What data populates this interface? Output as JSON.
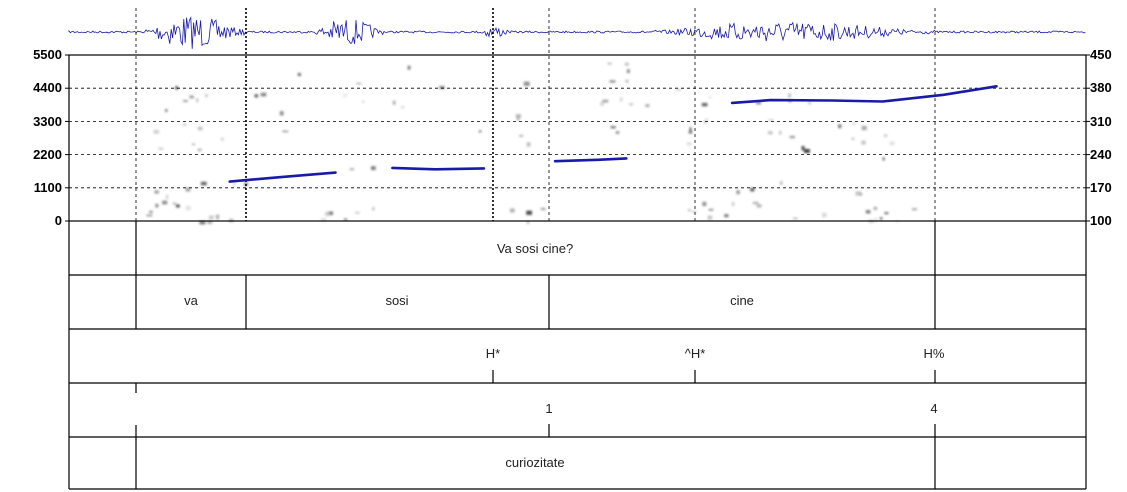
{
  "chart_data": {
    "type": "spectrogram",
    "colors": {
      "pitch": "#1a1aa8",
      "waveform": "#1a1aa8",
      "grid": "#000000",
      "tier_line": "#000000"
    },
    "left_axis": {
      "ylim": [
        0,
        5500
      ],
      "ticks": [
        "5500",
        "4400",
        "3300",
        "2200",
        "1100",
        "0"
      ]
    },
    "right_axis": {
      "ylim": [
        100,
        450
      ],
      "ticks": [
        "450",
        "380",
        "310",
        "240",
        "170",
        "100"
      ]
    },
    "pitch_contour": [
      {
        "segment": "va",
        "points": [
          [
            0.158,
            183
          ],
          [
            0.21,
            193
          ],
          [
            0.262,
            202
          ]
        ]
      },
      {
        "segment": "sosi",
        "points": [
          [
            0.318,
            212
          ],
          [
            0.36,
            209
          ],
          [
            0.408,
            211
          ]
        ]
      },
      {
        "segment": "sosi-end",
        "points": [
          [
            0.478,
            226
          ],
          [
            0.52,
            229
          ],
          [
            0.548,
            232
          ]
        ]
      },
      {
        "segment": "cine",
        "points": [
          [
            0.652,
            349
          ],
          [
            0.69,
            355
          ],
          [
            0.75,
            354
          ],
          [
            0.8,
            352
          ],
          [
            0.86,
            366
          ],
          [
            0.912,
            384
          ]
        ]
      }
    ],
    "tiers": [
      {
        "name": "text",
        "labels": [
          "Va sosi cine?"
        ]
      },
      {
        "name": "words",
        "labels": [
          "va",
          "sosi",
          "cine"
        ]
      },
      {
        "name": "tones",
        "labels": [
          "H*",
          "^H*",
          "H%"
        ]
      },
      {
        "name": "break_indices",
        "labels": [
          "1",
          "4"
        ]
      },
      {
        "name": "function",
        "labels": [
          "curiozitate"
        ]
      }
    ]
  }
}
